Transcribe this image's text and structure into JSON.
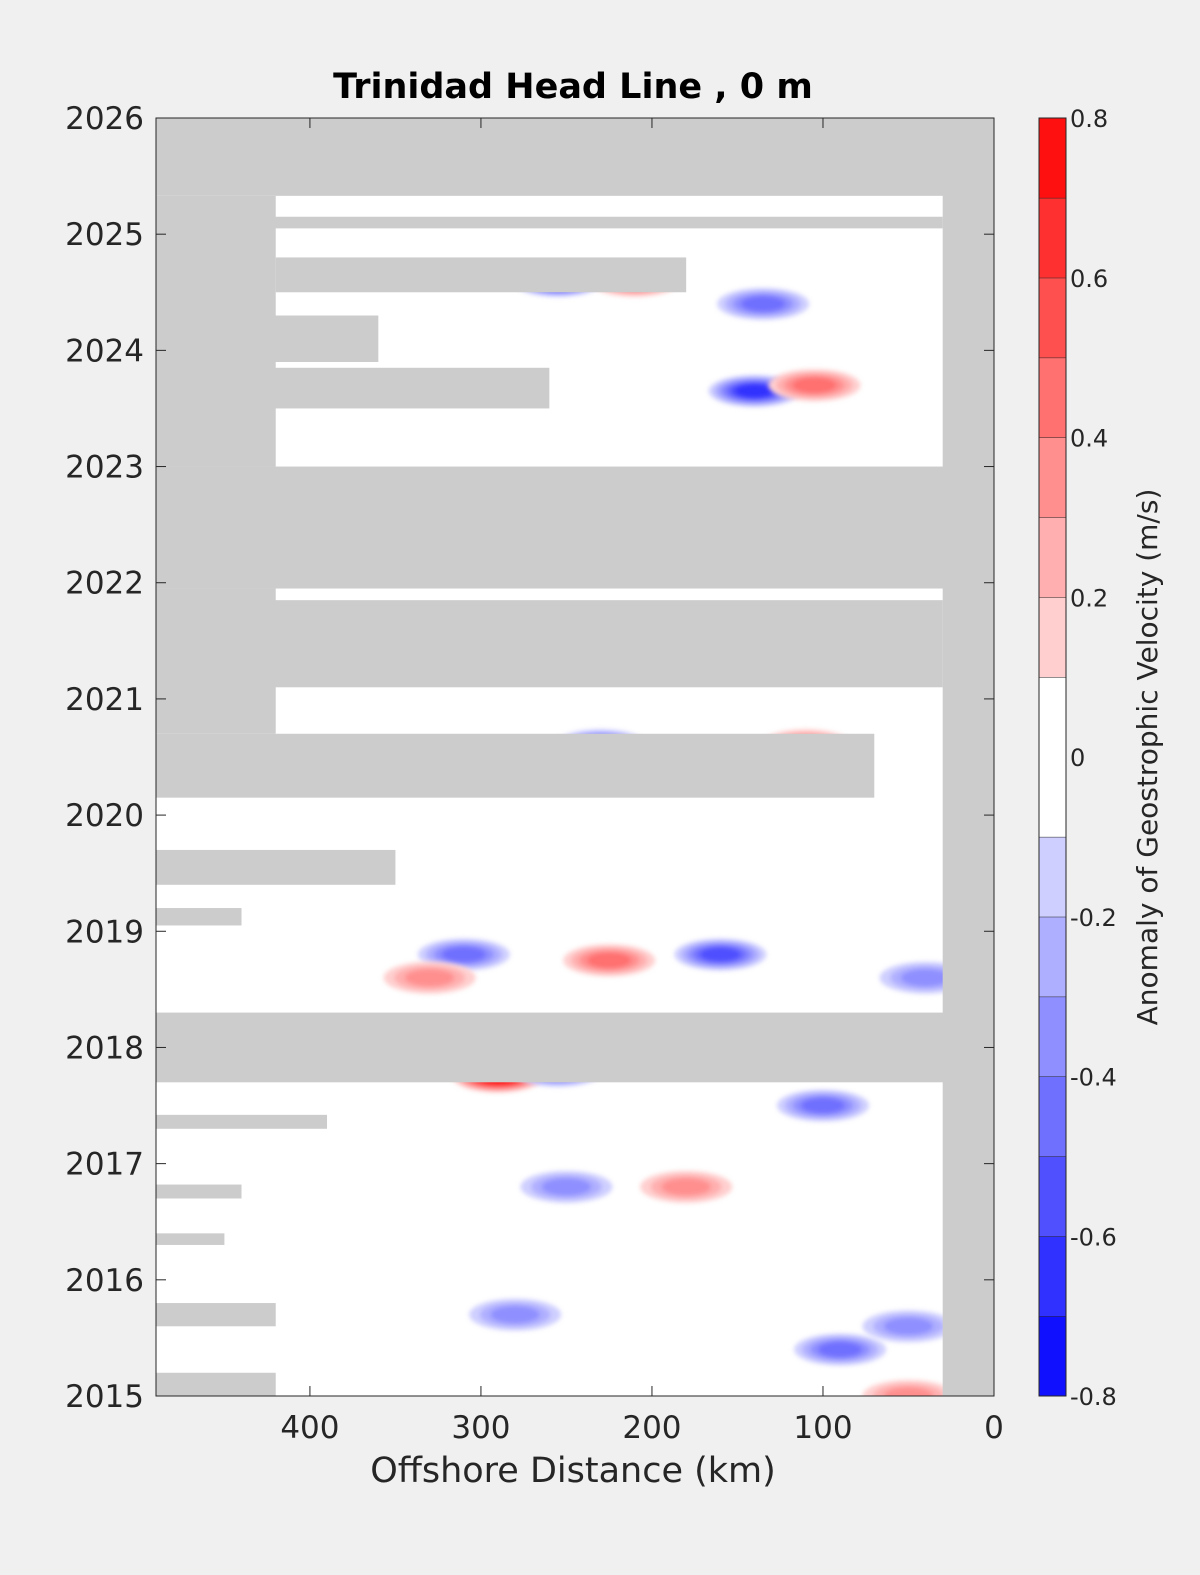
{
  "chart_data": {
    "type": "heatmap",
    "title": "Trinidad Head Line , 0 m",
    "xlabel": "Offshore Distance (km)",
    "ylabel": "",
    "xlim": [
      490,
      0
    ],
    "ylim": [
      2015,
      2026
    ],
    "x_ticks": [
      400,
      300,
      200,
      100,
      0
    ],
    "y_ticks": [
      2015,
      2016,
      2017,
      2018,
      2019,
      2020,
      2021,
      2022,
      2023,
      2024,
      2025,
      2026
    ],
    "colorbar": {
      "label": "Anomaly of Geostrophic Velocity (m/s)",
      "range": [
        -0.8,
        0.8
      ],
      "ticks": [
        0.8,
        0.6,
        0.4,
        0.2,
        0,
        -0.2,
        -0.4,
        -0.6,
        -0.8
      ],
      "levels": [
        -0.8,
        -0.7,
        -0.6,
        -0.5,
        -0.4,
        -0.3,
        -0.2,
        -0.1,
        0.1,
        0.2,
        0.3,
        0.4,
        0.5,
        0.6,
        0.7,
        0.8
      ],
      "low_color": "#0000ff",
      "high_color": "#ff0000",
      "mid_color": "#ffffff"
    },
    "nodata_color": "#cccccc",
    "nodata_regions": [
      {
        "x_range": [
          490,
          0
        ],
        "y_range": [
          2025.33,
          2026
        ]
      },
      {
        "x_range": [
          30,
          0
        ],
        "y_range": [
          2015,
          2026
        ]
      },
      {
        "x_range": [
          490,
          420
        ],
        "y_range": [
          2023.0,
          2025.33
        ]
      },
      {
        "x_range": [
          430,
          30
        ],
        "y_range": [
          2025.05,
          2025.15
        ]
      },
      {
        "x_range": [
          420,
          180
        ],
        "y_range": [
          2024.5,
          2024.8
        ]
      },
      {
        "x_range": [
          490,
          360
        ],
        "y_range": [
          2023.9,
          2024.3
        ]
      },
      {
        "x_range": [
          430,
          260
        ],
        "y_range": [
          2023.5,
          2023.85
        ]
      },
      {
        "x_range": [
          490,
          0
        ],
        "y_range": [
          2021.95,
          2023.0
        ]
      },
      {
        "x_range": [
          490,
          420
        ],
        "y_range": [
          2020.7,
          2021.95
        ]
      },
      {
        "x_range": [
          430,
          30
        ],
        "y_range": [
          2021.1,
          2021.85
        ]
      },
      {
        "x_range": [
          490,
          70
        ],
        "y_range": [
          2020.15,
          2020.7
        ]
      },
      {
        "x_range": [
          490,
          350
        ],
        "y_range": [
          2019.4,
          2019.7
        ]
      },
      {
        "x_range": [
          490,
          440
        ],
        "y_range": [
          2019.05,
          2019.2
        ]
      },
      {
        "x_range": [
          490,
          0
        ],
        "y_range": [
          2017.7,
          2018.3
        ]
      },
      {
        "x_range": [
          490,
          390
        ],
        "y_range": [
          2017.3,
          2017.42
        ]
      },
      {
        "x_range": [
          490,
          440
        ],
        "y_range": [
          2016.7,
          2016.82
        ]
      },
      {
        "x_range": [
          490,
          450
        ],
        "y_range": [
          2016.3,
          2016.4
        ]
      },
      {
        "x_range": [
          490,
          420
        ],
        "y_range": [
          2015.6,
          2015.8
        ]
      },
      {
        "x_range": [
          490,
          420
        ],
        "y_range": [
          2015,
          2015.2
        ]
      }
    ],
    "anomaly_features": [
      {
        "x": 255,
        "y": 2024.6,
        "value": -0.7
      },
      {
        "x": 210,
        "y": 2024.6,
        "value": 0.5
      },
      {
        "x": 135,
        "y": 2024.4,
        "value": -0.4
      },
      {
        "x": 140,
        "y": 2023.65,
        "value": -0.6
      },
      {
        "x": 105,
        "y": 2023.7,
        "value": 0.4
      },
      {
        "x": 290,
        "y": 2017.75,
        "value": 0.8
      },
      {
        "x": 255,
        "y": 2017.8,
        "value": -0.5
      },
      {
        "x": 160,
        "y": 2018.8,
        "value": -0.5
      },
      {
        "x": 225,
        "y": 2018.75,
        "value": 0.4
      },
      {
        "x": 310,
        "y": 2018.8,
        "value": -0.4
      },
      {
        "x": 330,
        "y": 2018.6,
        "value": 0.3
      },
      {
        "x": 230,
        "y": 2020.6,
        "value": -0.5
      },
      {
        "x": 110,
        "y": 2020.6,
        "value": 0.4
      },
      {
        "x": 100,
        "y": 2017.5,
        "value": -0.4
      },
      {
        "x": 90,
        "y": 2015.4,
        "value": -0.4
      },
      {
        "x": 250,
        "y": 2016.8,
        "value": -0.3
      },
      {
        "x": 180,
        "y": 2016.8,
        "value": 0.3
      },
      {
        "x": 50,
        "y": 2015.6,
        "value": -0.3
      },
      {
        "x": 40,
        "y": 2018.6,
        "value": -0.3
      },
      {
        "x": 280,
        "y": 2015.7,
        "value": -0.3
      },
      {
        "x": 50,
        "y": 2015.0,
        "value": 0.3
      }
    ]
  }
}
